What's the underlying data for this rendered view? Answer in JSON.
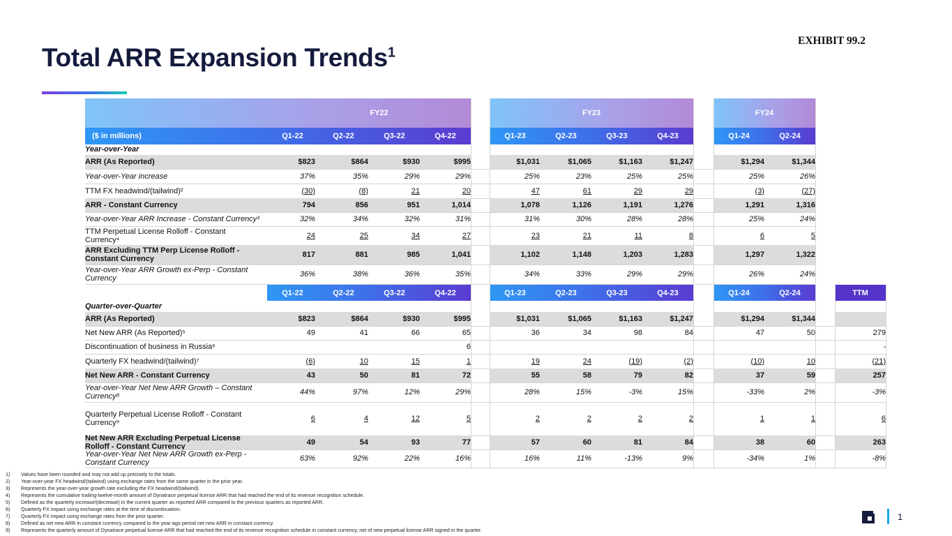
{
  "exhibit": "EXHIBIT 99.2",
  "title": "Total ARR Expansion Trends",
  "title_sup": "1",
  "fiscal_years": [
    "FY22",
    "FY23",
    "FY24"
  ],
  "unit_label": "($ in millions)",
  "quarters": [
    "Q1-22",
    "Q2-22",
    "Q3-22",
    "Q4-22",
    "Q1-23",
    "Q2-23",
    "Q3-23",
    "Q4-23",
    "Q1-24",
    "Q2-24"
  ],
  "ttm_label": "TTM",
  "yoy_section": "Year-over-Year",
  "qoq_section": "Quarter-over-Quarter",
  "yoy_rows": [
    {
      "label": "ARR (As Reported)",
      "style": "bold shade",
      "values": [
        "$823",
        "$864",
        "$930",
        "$995",
        "$1,031",
        "$1,065",
        "$1,163",
        "$1,247",
        "$1,294",
        "$1,344"
      ]
    },
    {
      "label": "Year-over-Year increase",
      "style": "ital",
      "values": [
        "37%",
        "35%",
        "29%",
        "29%",
        "25%",
        "23%",
        "25%",
        "25%",
        "25%",
        "26%"
      ]
    },
    {
      "label": "TTM FX headwind/(tailwind)²",
      "style": "u",
      "values": [
        "(30)",
        "(8)",
        "21",
        "20",
        "47",
        "61",
        "29",
        "29",
        "(3)",
        "(27)"
      ]
    },
    {
      "label": "ARR - Constant Currency",
      "style": "bold shade",
      "values": [
        "794",
        "856",
        "951",
        "1,014",
        "1,078",
        "1,126",
        "1,191",
        "1,276",
        "1,291",
        "1,316"
      ]
    },
    {
      "label": "Year-over-Year ARR Increase - Constant Currency³",
      "style": "ital",
      "values": [
        "32%",
        "34%",
        "32%",
        "31%",
        "31%",
        "30%",
        "28%",
        "28%",
        "25%",
        "24%"
      ]
    },
    {
      "label": "TTM Perpetual License Rolloff - Constant Currency⁴",
      "style": "u",
      "values": [
        "24",
        "25",
        "34",
        "27",
        "23",
        "21",
        "11",
        "8",
        "6",
        "5"
      ]
    },
    {
      "label": "ARR Excluding TTM Perp License Rolloff - Constant Currency",
      "style": "bold shade",
      "values": [
        "817",
        "881",
        "985",
        "1,041",
        "1,102",
        "1,148",
        "1,203",
        "1,283",
        "1,297",
        "1,322"
      ]
    },
    {
      "label": "Year-over-Year ARR Growth ex-Perp - Constant Currency",
      "style": "ital",
      "values": [
        "36%",
        "38%",
        "36%",
        "35%",
        "34%",
        "33%",
        "29%",
        "29%",
        "26%",
        "24%"
      ]
    }
  ],
  "qoq_rows": [
    {
      "label": "ARR (As Reported)",
      "style": "bold shade",
      "values": [
        "$823",
        "$864",
        "$930",
        "$995",
        "$1,031",
        "$1,065",
        "$1,163",
        "$1,247",
        "$1,294",
        "$1,344"
      ],
      "ttm": ""
    },
    {
      "label": "Net New ARR (As Reported)⁵",
      "style": "",
      "values": [
        "49",
        "41",
        "66",
        "65",
        "36",
        "34",
        "98",
        "84",
        "47",
        "50"
      ],
      "ttm": "279"
    },
    {
      "label": "Discontinuation of business in Russia⁶",
      "style": "",
      "values": [
        "",
        "",
        "",
        "6",
        "",
        "",
        "",
        "",
        "",
        ""
      ],
      "ttm": "-"
    },
    {
      "label": "Quarterly FX headwind/(tailwind)⁷",
      "style": "u",
      "values": [
        "(6)",
        "10",
        "15",
        "1",
        "19",
        "24",
        "(19)",
        "(2)",
        "(10)",
        "10"
      ],
      "ttm": "(21)"
    },
    {
      "label": "Net New ARR - Constant Currency",
      "style": "bold shade",
      "values": [
        "43",
        "50",
        "81",
        "72",
        "55",
        "58",
        "79",
        "82",
        "37",
        "59"
      ],
      "ttm": "257"
    },
    {
      "label": "Year-over-Year Net New ARR Growth – Constant Currency⁸",
      "style": "ital",
      "values": [
        "44%",
        "97%",
        "12%",
        "29%",
        "28%",
        "15%",
        "-3%",
        "15%",
        "-33%",
        "2%"
      ],
      "ttm": "-3%"
    },
    {
      "label": "Quarterly Perpetual License Rolloff - Constant Currency⁹",
      "style": "u",
      "values": [
        "6",
        "4",
        "12",
        "5",
        "2",
        "2",
        "2",
        "2",
        "1",
        "1"
      ],
      "ttm": "6"
    },
    {
      "label": "Net New ARR Excluding Perpetual License Rolloff - Constant Currency",
      "style": "bold shade",
      "values": [
        "49",
        "54",
        "93",
        "77",
        "57",
        "60",
        "81",
        "84",
        "38",
        "60"
      ],
      "ttm": "263"
    },
    {
      "label": "Year-over-Year Net New ARR Growth ex-Perp - Constant Currency",
      "style": "ital",
      "values": [
        "63%",
        "92%",
        "22%",
        "16%",
        "16%",
        "11%",
        "-13%",
        "9%",
        "-34%",
        "1%"
      ],
      "ttm": "-8%"
    }
  ],
  "footnotes": [
    {
      "n": "1)",
      "t": "Values have been rounded and may not add up precisely to the totals."
    },
    {
      "n": "2)",
      "t": "Year-over-year FX headwind/(tailwind) using exchange rates from the same quarter in the prior year."
    },
    {
      "n": "3)",
      "t": "Represents the year-over-year growth rate excluding the FX headwind/(tailwind)."
    },
    {
      "n": "4)",
      "t": "Represents the cumulative trailing-twelve-month amount of Dynatrace perpetual license ARR that had reached the end of its revenue recognition schedule."
    },
    {
      "n": "5)",
      "t": "Defined as the quarterly increase/(decrease) in the current quarter as reported ARR compared to the previous quarters as reported ARR."
    },
    {
      "n": "6)",
      "t": "Quarterly FX impact using exchange rates at the time of discontinuation."
    },
    {
      "n": "7)",
      "t": "Quarterly FX impact using exchange rates from the prior quarter."
    },
    {
      "n": "8)",
      "t": "Defined as net new ARR in constant currency compared to the year-ago period net new ARR in constant currency."
    },
    {
      "n": "9)",
      "t": "Represents the quarterly amount of Dynatrace perpetual license ARR that had reached the end of its revenue recognition schedule in constant currency, net of new perpetual license ARR signed in the quarter."
    }
  ],
  "page_number": "1",
  "colors": {
    "title": "#141b3d",
    "shade": "#dcdcdc",
    "accent": "#19a6f0"
  }
}
